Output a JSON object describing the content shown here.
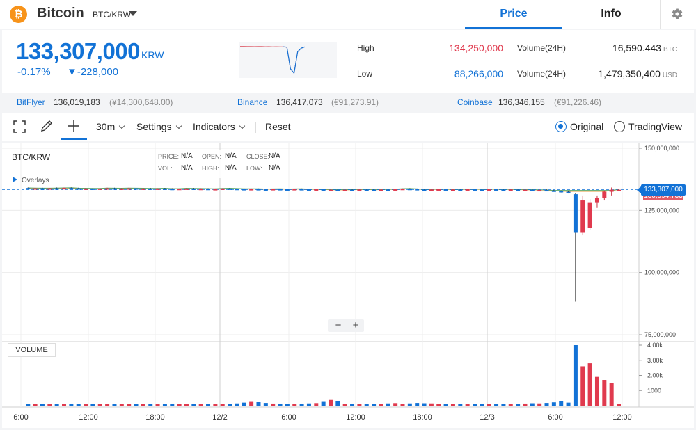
{
  "header": {
    "coin_symbol": "₿",
    "coin_name": "Bitcoin",
    "pair": "BTC/KRW",
    "tabs": [
      {
        "label": "Price"
      },
      {
        "label": "Info"
      }
    ]
  },
  "summary": {
    "price": "133,307,000",
    "unit": "KRW",
    "change_pct": "-0.17%",
    "change_abs": "▼-228,000",
    "high_label": "High",
    "high_value": "134,250,000",
    "low_label": "Low",
    "low_value": "88,266,000",
    "vol1_label": "Volume(24H)",
    "vol1_value": "16,590.443",
    "vol1_unit": "BTC",
    "vol2_label": "Volume(24H)",
    "vol2_value": "1,479,350,400",
    "vol2_unit": "USD",
    "sparkline": [
      133.9,
      133.9,
      133.7,
      133.8,
      133.6,
      133.8,
      133.7,
      133.5,
      133.6,
      133.4,
      133.5,
      133.3,
      133.4,
      132.8,
      96.0,
      88.3,
      125.0,
      131.0,
      133.3
    ]
  },
  "exchanges": [
    {
      "name": "BitFlyer",
      "price": "136,019,183",
      "sub": "(¥14,300,648.00)"
    },
    {
      "name": "Binance",
      "price": "136,417,073",
      "sub": "(€91,273.91)"
    },
    {
      "name": "Coinbase",
      "price": "136,346,155",
      "sub": "(€91,226.46)"
    }
  ],
  "toolbar": {
    "interval": "30m",
    "settings": "Settings",
    "indicators": "Indicators",
    "reset": "Reset",
    "option_original": "Original",
    "option_tradingview": "TradingView"
  },
  "chart": {
    "title": "BTC/KRW",
    "legend": {
      "price_label": "PRICE:",
      "price_val": "N/A",
      "open_label": "OPEN:",
      "open_val": "N/A",
      "close_label": "CLOSE:",
      "close_val": "N/A",
      "vol_label": "VOL:",
      "vol_val": "N/A",
      "high_label": "HIGH:",
      "high_val": "N/A",
      "low_label": "LOW:",
      "low_val": "N/A"
    },
    "overlays": "Overlays",
    "volume_label": "VOLUME",
    "last_price_tag": "133,307,000",
    "second_price_tag": "130,994,733",
    "zoom_minus": "−",
    "zoom_plus": "+"
  },
  "chart_data": {
    "type": "candlestick",
    "price_axis": {
      "ticks": [
        "150,000,000",
        "125,000,000",
        "100,000,000",
        "75,000,000"
      ],
      "range": [
        75000000,
        150000000
      ]
    },
    "volume_axis": {
      "ticks": [
        "4.00k",
        "3.00k",
        "2.00k",
        "1000"
      ],
      "range": [
        0,
        4000
      ]
    },
    "x_ticks": [
      "6:00",
      "12:00",
      "18:00",
      "12/2",
      "6:00",
      "12:00",
      "18:00",
      "12/3",
      "6:00",
      "12:00"
    ],
    "series": [
      {
        "t": 0.0,
        "o": 134.0,
        "c": 133.8,
        "h": 134.2,
        "l": 133.5,
        "v": 60
      },
      {
        "t": 0.5,
        "o": 133.8,
        "c": 133.9,
        "h": 134.1,
        "l": 133.6,
        "v": 40
      },
      {
        "t": 1.0,
        "o": 133.9,
        "c": 133.7,
        "h": 134.1,
        "l": 133.5,
        "v": 50
      },
      {
        "t": 1.5,
        "o": 133.7,
        "c": 133.9,
        "h": 134.0,
        "l": 133.5,
        "v": 45
      },
      {
        "t": 2.0,
        "o": 133.9,
        "c": 133.8,
        "h": 134.2,
        "l": 133.6,
        "v": 55
      },
      {
        "t": 2.5,
        "o": 133.8,
        "c": 134.0,
        "h": 134.2,
        "l": 133.6,
        "v": 40
      },
      {
        "t": 3.0,
        "o": 134.0,
        "c": 133.9,
        "h": 134.2,
        "l": 133.7,
        "v": 50
      },
      {
        "t": 3.5,
        "o": 133.9,
        "c": 133.7,
        "h": 134.1,
        "l": 133.5,
        "v": 45
      },
      {
        "t": 4.0,
        "o": 133.7,
        "c": 133.8,
        "h": 134.0,
        "l": 133.5,
        "v": 40
      },
      {
        "t": 4.5,
        "o": 133.8,
        "c": 133.6,
        "h": 134.0,
        "l": 133.4,
        "v": 50
      },
      {
        "t": 5.0,
        "o": 133.6,
        "c": 133.8,
        "h": 133.9,
        "l": 133.4,
        "v": 45
      },
      {
        "t": 5.5,
        "o": 133.8,
        "c": 133.9,
        "h": 134.1,
        "l": 133.6,
        "v": 40
      },
      {
        "t": 6.0,
        "o": 133.9,
        "c": 133.7,
        "h": 134.1,
        "l": 133.5,
        "v": 50
      },
      {
        "t": 6.5,
        "o": 133.7,
        "c": 133.8,
        "h": 134.0,
        "l": 133.5,
        "v": 60
      },
      {
        "t": 7.0,
        "o": 133.8,
        "c": 133.9,
        "h": 134.1,
        "l": 133.6,
        "v": 55
      },
      {
        "t": 7.5,
        "o": 133.9,
        "c": 133.7,
        "h": 134.1,
        "l": 133.5,
        "v": 50
      },
      {
        "t": 8.0,
        "o": 133.7,
        "c": 133.8,
        "h": 134.0,
        "l": 133.5,
        "v": 45
      },
      {
        "t": 8.5,
        "o": 133.8,
        "c": 133.6,
        "h": 134.0,
        "l": 133.4,
        "v": 50
      },
      {
        "t": 9.0,
        "o": 133.6,
        "c": 133.8,
        "h": 133.9,
        "l": 133.4,
        "v": 40
      },
      {
        "t": 9.5,
        "o": 133.8,
        "c": 133.7,
        "h": 134.0,
        "l": 133.5,
        "v": 45
      },
      {
        "t": 10.0,
        "o": 133.7,
        "c": 133.5,
        "h": 133.9,
        "l": 133.3,
        "v": 50
      },
      {
        "t": 10.5,
        "o": 133.5,
        "c": 133.7,
        "h": 133.8,
        "l": 133.3,
        "v": 45
      },
      {
        "t": 11.0,
        "o": 133.7,
        "c": 133.8,
        "h": 134.0,
        "l": 133.5,
        "v": 40
      },
      {
        "t": 11.5,
        "o": 133.8,
        "c": 133.6,
        "h": 134.0,
        "l": 133.4,
        "v": 50
      },
      {
        "t": 12.0,
        "o": 133.6,
        "c": 133.7,
        "h": 133.9,
        "l": 133.4,
        "v": 55
      },
      {
        "t": 12.5,
        "o": 133.7,
        "c": 133.5,
        "h": 133.9,
        "l": 133.3,
        "v": 50
      },
      {
        "t": 13.0,
        "o": 133.5,
        "c": 133.6,
        "h": 133.8,
        "l": 133.3,
        "v": 60
      },
      {
        "t": 13.5,
        "o": 133.6,
        "c": 133.8,
        "h": 133.9,
        "l": 133.4,
        "v": 80
      },
      {
        "t": 14.0,
        "o": 133.8,
        "c": 133.7,
        "h": 134.0,
        "l": 133.5,
        "v": 120
      },
      {
        "t": 14.5,
        "o": 133.7,
        "c": 133.6,
        "h": 133.9,
        "l": 133.4,
        "v": 150
      },
      {
        "t": 15.0,
        "o": 133.6,
        "c": 133.5,
        "h": 133.8,
        "l": 133.3,
        "v": 200
      },
      {
        "t": 15.5,
        "o": 133.5,
        "c": 133.6,
        "h": 133.8,
        "l": 133.3,
        "v": 250
      },
      {
        "t": 16.0,
        "o": 133.6,
        "c": 133.5,
        "h": 133.8,
        "l": 133.3,
        "v": 230
      },
      {
        "t": 16.5,
        "o": 133.5,
        "c": 133.4,
        "h": 133.7,
        "l": 133.2,
        "v": 180
      },
      {
        "t": 17.0,
        "o": 133.4,
        "c": 133.6,
        "h": 133.7,
        "l": 133.2,
        "v": 140
      },
      {
        "t": 17.5,
        "o": 133.6,
        "c": 133.5,
        "h": 133.8,
        "l": 133.3,
        "v": 120
      },
      {
        "t": 18.0,
        "o": 133.5,
        "c": 133.4,
        "h": 133.7,
        "l": 133.2,
        "v": 100
      },
      {
        "t": 18.5,
        "o": 133.4,
        "c": 133.6,
        "h": 133.7,
        "l": 133.2,
        "v": 90
      },
      {
        "t": 19.0,
        "o": 133.6,
        "c": 133.5,
        "h": 133.8,
        "l": 133.3,
        "v": 110
      },
      {
        "t": 19.5,
        "o": 133.5,
        "c": 133.3,
        "h": 133.7,
        "l": 133.1,
        "v": 150
      },
      {
        "t": 20.0,
        "o": 133.3,
        "c": 133.5,
        "h": 133.6,
        "l": 133.1,
        "v": 170
      },
      {
        "t": 20.5,
        "o": 133.5,
        "c": 133.2,
        "h": 133.7,
        "l": 133.0,
        "v": 250
      },
      {
        "t": 21.0,
        "o": 133.2,
        "c": 133.3,
        "h": 133.5,
        "l": 133.0,
        "v": 380
      },
      {
        "t": 21.5,
        "o": 133.3,
        "c": 133.1,
        "h": 133.5,
        "l": 132.9,
        "v": 280
      },
      {
        "t": 22.0,
        "o": 133.1,
        "c": 133.3,
        "h": 133.4,
        "l": 132.9,
        "v": 120
      },
      {
        "t": 22.5,
        "o": 133.3,
        "c": 133.2,
        "h": 133.5,
        "l": 133.0,
        "v": 100
      },
      {
        "t": 23.0,
        "o": 133.2,
        "c": 133.4,
        "h": 133.5,
        "l": 133.0,
        "v": 90
      },
      {
        "t": 23.5,
        "o": 133.4,
        "c": 133.3,
        "h": 133.6,
        "l": 133.1,
        "v": 100
      },
      {
        "t": 24.0,
        "o": 133.3,
        "c": 133.2,
        "h": 133.5,
        "l": 133.0,
        "v": 110
      },
      {
        "t": 24.5,
        "o": 133.2,
        "c": 133.4,
        "h": 133.5,
        "l": 133.0,
        "v": 130
      },
      {
        "t": 25.0,
        "o": 133.4,
        "c": 133.3,
        "h": 133.6,
        "l": 133.1,
        "v": 150
      },
      {
        "t": 25.5,
        "o": 133.3,
        "c": 133.5,
        "h": 133.6,
        "l": 133.1,
        "v": 170
      },
      {
        "t": 26.0,
        "o": 133.5,
        "c": 133.7,
        "h": 133.8,
        "l": 133.3,
        "v": 130
      },
      {
        "t": 26.5,
        "o": 133.7,
        "c": 133.6,
        "h": 133.9,
        "l": 133.4,
        "v": 150
      },
      {
        "t": 27.0,
        "o": 133.6,
        "c": 133.4,
        "h": 133.8,
        "l": 133.2,
        "v": 180
      },
      {
        "t": 27.5,
        "o": 133.4,
        "c": 133.3,
        "h": 133.6,
        "l": 133.1,
        "v": 160
      },
      {
        "t": 28.0,
        "o": 133.3,
        "c": 133.4,
        "h": 133.6,
        "l": 133.1,
        "v": 150
      },
      {
        "t": 28.5,
        "o": 133.4,
        "c": 133.5,
        "h": 133.7,
        "l": 133.2,
        "v": 130
      },
      {
        "t": 29.0,
        "o": 133.5,
        "c": 133.3,
        "h": 133.7,
        "l": 133.1,
        "v": 110
      },
      {
        "t": 29.5,
        "o": 133.3,
        "c": 133.4,
        "h": 133.6,
        "l": 133.1,
        "v": 100
      },
      {
        "t": 30.0,
        "o": 133.4,
        "c": 133.3,
        "h": 133.6,
        "l": 133.1,
        "v": 90
      },
      {
        "t": 30.5,
        "o": 133.3,
        "c": 133.5,
        "h": 133.6,
        "l": 133.1,
        "v": 100
      },
      {
        "t": 31.0,
        "o": 133.5,
        "c": 133.4,
        "h": 133.7,
        "l": 133.2,
        "v": 110
      },
      {
        "t": 31.5,
        "o": 133.4,
        "c": 133.3,
        "h": 133.6,
        "l": 133.1,
        "v": 100
      },
      {
        "t": 32.0,
        "o": 133.3,
        "c": 133.5,
        "h": 133.6,
        "l": 133.1,
        "v": 90
      },
      {
        "t": 32.5,
        "o": 133.5,
        "c": 133.4,
        "h": 133.7,
        "l": 133.2,
        "v": 100
      },
      {
        "t": 33.0,
        "o": 133.4,
        "c": 133.3,
        "h": 133.6,
        "l": 133.1,
        "v": 120
      },
      {
        "t": 33.5,
        "o": 133.3,
        "c": 133.4,
        "h": 133.5,
        "l": 133.1,
        "v": 110
      },
      {
        "t": 34.0,
        "o": 133.4,
        "c": 133.2,
        "h": 133.6,
        "l": 133.0,
        "v": 130
      },
      {
        "t": 34.5,
        "o": 133.2,
        "c": 133.3,
        "h": 133.5,
        "l": 133.0,
        "v": 140
      },
      {
        "t": 35.0,
        "o": 133.3,
        "c": 133.1,
        "h": 133.5,
        "l": 132.9,
        "v": 160
      },
      {
        "t": 35.5,
        "o": 133.1,
        "c": 133.2,
        "h": 133.4,
        "l": 132.9,
        "v": 150
      },
      {
        "t": 36.0,
        "o": 133.2,
        "c": 133.0,
        "h": 133.4,
        "l": 132.8,
        "v": 180
      },
      {
        "t": 36.5,
        "o": 133.0,
        "c": 132.8,
        "h": 133.2,
        "l": 132.5,
        "v": 220
      },
      {
        "t": 37.0,
        "o": 132.8,
        "c": 132.5,
        "h": 133.0,
        "l": 132.2,
        "v": 300
      },
      {
        "t": 37.5,
        "o": 132.5,
        "c": 132.2,
        "h": 132.8,
        "l": 131.8,
        "v": 200
      },
      {
        "t": 38.0,
        "o": 131.5,
        "c": 116.0,
        "h": 132.0,
        "l": 88.3,
        "v": 4000
      },
      {
        "t": 38.5,
        "o": 116.0,
        "c": 129.0,
        "h": 131.0,
        "l": 115.0,
        "v": 2600
      },
      {
        "t": 39.0,
        "o": 118.0,
        "c": 128.0,
        "h": 129.5,
        "l": 117.0,
        "v": 2800
      },
      {
        "t": 39.5,
        "o": 128.0,
        "c": 130.0,
        "h": 131.0,
        "l": 126.0,
        "v": 1900
      },
      {
        "t": 40.0,
        "o": 130.0,
        "c": 132.5,
        "h": 133.0,
        "l": 129.0,
        "v": 1700
      },
      {
        "t": 40.5,
        "o": 132.5,
        "c": 133.3,
        "h": 134.2,
        "l": 131.0,
        "v": 1500
      },
      {
        "t": 41.0,
        "o": 133.3,
        "c": 133.3,
        "h": 133.5,
        "l": 133.0,
        "v": 100
      }
    ]
  }
}
